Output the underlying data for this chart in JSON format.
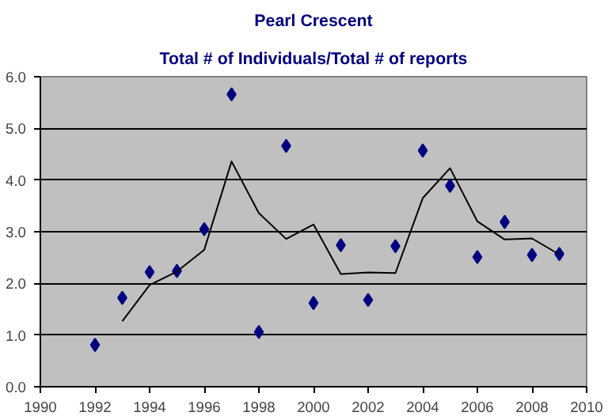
{
  "chart_data": {
    "type": "scatter",
    "title": "Pearl Crescent",
    "subtitle": "Total # of Individuals/Total # of reports",
    "x": [
      1992,
      1993,
      1994,
      1995,
      1996,
      1997,
      1998,
      1999,
      2000,
      2001,
      2002,
      2003,
      2004,
      2005,
      2006,
      2007,
      2008,
      2009
    ],
    "series": [
      {
        "color": "#000080",
        "marker": "diamond",
        "values": [
          0.81,
          1.72,
          2.22,
          2.24,
          3.05,
          5.66,
          1.06,
          4.66,
          1.62,
          2.74,
          1.68,
          2.72,
          4.57,
          3.89,
          2.51,
          3.19,
          2.55,
          2.57
        ]
      },
      {
        "type": "line",
        "color": "#000000",
        "marker": "none",
        "x": [
          1993,
          1994,
          1995,
          1996,
          1997,
          1998,
          1999,
          2000,
          2001,
          2002,
          2003,
          2004,
          2005,
          2006,
          2007,
          2008,
          2009
        ],
        "values": [
          1.27,
          1.97,
          2.23,
          2.65,
          4.36,
          3.36,
          2.86,
          3.14,
          2.18,
          2.21,
          2.2,
          3.65,
          4.23,
          3.2,
          2.85,
          2.87,
          2.56
        ]
      }
    ],
    "xlim": [
      1990,
      2010
    ],
    "xticks": [
      1990,
      1992,
      1994,
      1996,
      1998,
      2000,
      2002,
      2004,
      2006,
      2008,
      2010
    ],
    "ylim": [
      0,
      6
    ],
    "yticks": [
      {
        "value": 0,
        "label": "0.0"
      },
      {
        "value": 1,
        "label": "1.0"
      },
      {
        "value": 2,
        "label": "2.0"
      },
      {
        "value": 3,
        "label": "3.0"
      },
      {
        "value": 4,
        "label": "4.0"
      },
      {
        "value": 5,
        "label": "5.0"
      },
      {
        "value": 6,
        "label": "6.0"
      }
    ],
    "grid": "y"
  }
}
